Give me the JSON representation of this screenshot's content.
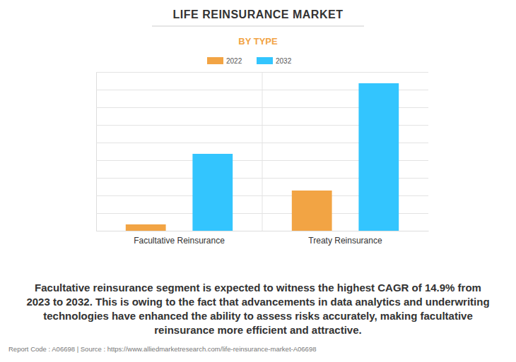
{
  "chart_data": {
    "type": "bar",
    "title": "LIFE REINSURANCE MARKET",
    "subtitle": "BY TYPE",
    "categories": [
      "Facultative Reinsurance",
      "Treaty Reinsurance"
    ],
    "series": [
      {
        "name": "2022",
        "color": "#f2a444",
        "values": [
          0.36,
          2.28
        ]
      },
      {
        "name": "2032",
        "color": "#33c5fe",
        "values": [
          4.36,
          8.36
        ]
      }
    ],
    "ylim": [
      0,
      9
    ],
    "yticks": [
      0,
      1,
      2,
      3,
      4,
      5,
      6,
      7,
      8,
      9
    ],
    "grid": true,
    "tick_labels": "x",
    "legend": "top",
    "annotations": [
      "Facultative reinsurance segment is expected to witness the highest CAGR of 14.9% from",
      "2023 to 2032. This is owing to the fact that advancements in data analytics and underwriting",
      "technologies have enhanced the ability to assess risks accurately, making facultative",
      "reinsurance more efficient and attractive."
    ],
    "footer": "Report Code : A06698  |  Source : https://www.alliedmarketresearch.com/life-reinsurance-market-A06698"
  }
}
